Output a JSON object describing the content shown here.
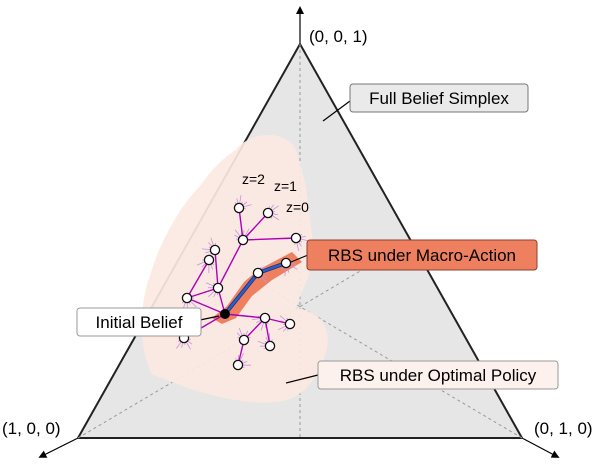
{
  "vertices": {
    "top": "(0, 0, 1)",
    "left": "(1, 0, 0)",
    "right": "(0, 1, 0)"
  },
  "callouts": {
    "full_simplex": "Full Belief Simplex",
    "macro_action": "RBS under Macro-Action",
    "initial_belief": "Initial Belief",
    "optimal_policy": "RBS under Optimal Policy"
  },
  "branch_labels": {
    "z2": "z=2",
    "z1": "z=1",
    "z0": "z=0"
  },
  "colors": {
    "simplex_fill": "#e6e6e6",
    "rbs_region": "#fce8e2",
    "macro_highlight": "#ee8060",
    "tree_edges": "#b000b8",
    "macro_path": "#2a5fd0",
    "node_fill": "#ffffff",
    "initial_belief_dot": "#000000"
  }
}
